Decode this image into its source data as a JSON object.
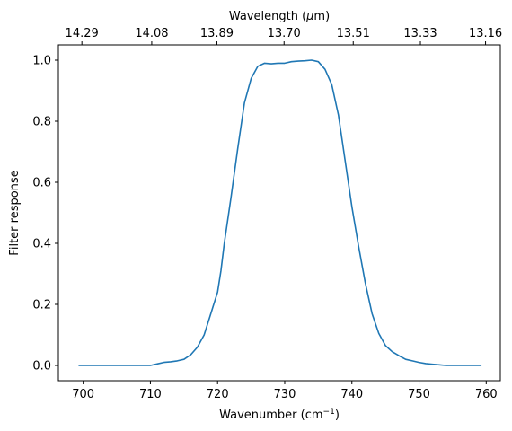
{
  "chart_data": {
    "type": "line",
    "title": "",
    "xlabel": "Wavenumber (cm",
    "xlabel_sup": "−1",
    "xlabel_close": ")",
    "ylabel": "Filter response",
    "top_axis_label": "Wavelength (",
    "top_axis_label_mu": "μ",
    "top_axis_label_end": "m)",
    "xlim": [
      696.3,
      762.1
    ],
    "ylim": [
      -0.05,
      1.05
    ],
    "x_ticks": [
      700,
      710,
      720,
      730,
      740,
      750,
      760
    ],
    "y_ticks": [
      0.0,
      0.2,
      0.4,
      0.6,
      0.8,
      1.0
    ],
    "y_tick_labels": [
      "0.0",
      "0.2",
      "0.4",
      "0.6",
      "0.8",
      "1.0"
    ],
    "top_ticks": [
      {
        "wavenumber": 699.8,
        "label": "14.29"
      },
      {
        "wavenumber": 710.2,
        "label": "14.08"
      },
      {
        "wavenumber": 719.9,
        "label": "13.89"
      },
      {
        "wavenumber": 729.9,
        "label": "13.70"
      },
      {
        "wavenumber": 740.2,
        "label": "13.51"
      },
      {
        "wavenumber": 750.2,
        "label": "13.33"
      },
      {
        "wavenumber": 759.9,
        "label": "13.16"
      }
    ],
    "grid": false,
    "line_color": "#1f77b4",
    "series": [
      {
        "x": [
          699.3,
          702,
          705,
          708,
          710,
          711,
          712,
          713,
          714,
          715,
          716,
          717,
          718,
          719,
          720,
          720.5,
          721,
          722,
          723,
          724,
          725,
          726,
          727,
          728,
          729,
          730,
          731,
          732,
          733,
          734,
          735,
          736,
          737,
          738,
          739,
          740,
          741,
          742,
          743,
          744,
          745,
          746,
          747,
          748,
          749,
          750,
          751,
          752,
          753,
          754,
          755,
          756,
          757,
          758,
          759.3
        ],
        "y": [
          0.0,
          0.0,
          0.0,
          0.0,
          0.0,
          0.005,
          0.01,
          0.012,
          0.015,
          0.02,
          0.035,
          0.06,
          0.1,
          0.17,
          0.24,
          0.31,
          0.4,
          0.55,
          0.71,
          0.86,
          0.94,
          0.98,
          0.99,
          0.988,
          0.99,
          0.99,
          0.995,
          0.997,
          0.998,
          1.0,
          0.995,
          0.97,
          0.92,
          0.82,
          0.67,
          0.52,
          0.39,
          0.27,
          0.17,
          0.105,
          0.065,
          0.045,
          0.032,
          0.02,
          0.015,
          0.01,
          0.006,
          0.004,
          0.002,
          0.0,
          0.0,
          0.0,
          0.0,
          0.0,
          0.0
        ]
      }
    ]
  }
}
